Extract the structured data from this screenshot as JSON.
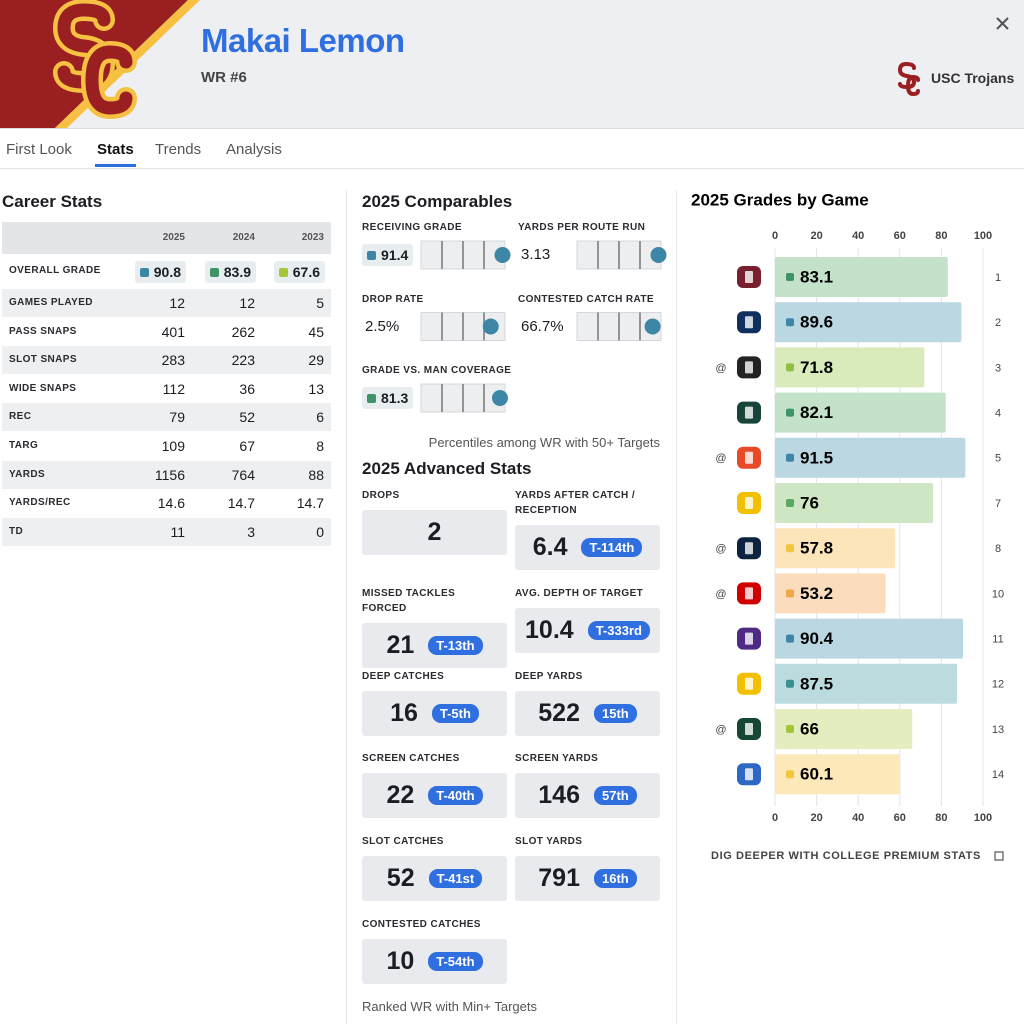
{
  "header": {
    "name": "Makai Lemon",
    "position": "WR #6",
    "team": "USC Trojans"
  },
  "tabs": {
    "items": [
      "First Look",
      "Stats",
      "Trends",
      "Analysis"
    ],
    "active": 1
  },
  "career_stats": {
    "title": "Career Stats",
    "columns": [
      "2025",
      "2024",
      "2023"
    ],
    "grade_row": {
      "label": "OVERALL GRADE",
      "values": [
        90.8,
        83.9,
        67.6
      ],
      "colors": [
        "#3d86a6",
        "#3e9466",
        "#a5c63b"
      ]
    },
    "rows": [
      [
        "GAMES PLAYED",
        12,
        12,
        5
      ],
      [
        "PASS SNAPS",
        401,
        262,
        45
      ],
      [
        "SLOT SNAPS",
        283,
        223,
        29
      ],
      [
        "WIDE SNAPS",
        112,
        36,
        13
      ],
      [
        "REC",
        79,
        52,
        6
      ],
      [
        "TARG",
        109,
        67,
        8
      ],
      [
        "YARDS",
        1156,
        764,
        88
      ],
      [
        "YARDS/REC",
        14.6,
        14.7,
        14.7
      ],
      [
        "TD",
        11,
        3,
        0
      ]
    ]
  },
  "comparables": {
    "title": "2025 Comparables",
    "items": [
      {
        "label": "RECEIVING GRADE",
        "value": 91.4,
        "color": "#3d86a6",
        "percentile": 97
      },
      {
        "label": "YARDS PER ROUTE RUN",
        "value": 3.13,
        "percentile": 97
      },
      {
        "label": "DROP RATE",
        "value": "2.5%",
        "percentile": 83
      },
      {
        "label": "CONTESTED CATCH RATE",
        "value": "66.7%",
        "percentile": 90
      },
      {
        "label": "GRADE VS. MAN COVERAGE",
        "value": 81.3,
        "color": "#3e9466",
        "percentile": 94
      }
    ],
    "note": "Percentiles among WR with 50+ Targets"
  },
  "advanced": {
    "title": "2025 Advanced Stats",
    "items": [
      {
        "label": "DROPS",
        "value": 2
      },
      {
        "label": "YARDS AFTER CATCH / RECEPTION",
        "value": 6.4,
        "rank": "T-114th"
      },
      {
        "label": "MISSED TACKLES FORCED",
        "value": 21,
        "rank": "T-13th"
      },
      {
        "label": "AVG. DEPTH OF TARGET",
        "value": 10.4,
        "rank": "T-333rd"
      },
      {
        "label": "DEEP CATCHES",
        "value": 16,
        "rank": "T-5th"
      },
      {
        "label": "DEEP YARDS",
        "value": 522,
        "rank": "15th"
      },
      {
        "label": "SCREEN CATCHES",
        "value": 22,
        "rank": "T-40th"
      },
      {
        "label": "SCREEN YARDS",
        "value": 146,
        "rank": "57th"
      },
      {
        "label": "SLOT CATCHES",
        "value": 52,
        "rank": "T-41st"
      },
      {
        "label": "SLOT YARDS",
        "value": 791,
        "rank": "16th"
      },
      {
        "label": "CONTESTED CATCHES",
        "value": 10,
        "rank": "T-54th"
      }
    ],
    "note": "Ranked WR with Min+ Targets"
  },
  "chart_data": {
    "type": "bar",
    "title": "2025 Grades by Game",
    "categories": [
      "1",
      "2",
      "3",
      "4",
      "5",
      "7",
      "8",
      "10",
      "11",
      "12",
      "13",
      "14"
    ],
    "prefix": [
      null,
      null,
      "@",
      null,
      "@",
      null,
      "@",
      "@",
      null,
      null,
      "@",
      null
    ],
    "values": [
      83.1,
      89.6,
      71.8,
      82.1,
      91.5,
      76,
      57.8,
      53.2,
      90.4,
      87.5,
      66,
      60.1
    ],
    "colors": [
      "#c4e2ca",
      "#bad7e2",
      "#d9eabb",
      "#c4e2ca",
      "#bad7e2",
      "#cfe6c4",
      "#fce5bb",
      "#fbdcbd",
      "#bad7e2",
      "#bcdbdf",
      "#e4edbf",
      "#fce8b8"
    ],
    "chip_colors": [
      "#3e9466",
      "#3d86a6",
      "#8fc043",
      "#3e9466",
      "#3d86a6",
      "#5aa860",
      "#f2c440",
      "#f0a848",
      "#3d86a6",
      "#3a9090",
      "#a5c63b",
      "#f2c440"
    ],
    "xlim": [
      0,
      100
    ],
    "xticks": [
      0,
      20,
      40,
      60,
      80,
      100
    ],
    "grid": true,
    "link": "DIG DEEPER WITH COLLEGE PREMIUM STATS"
  }
}
